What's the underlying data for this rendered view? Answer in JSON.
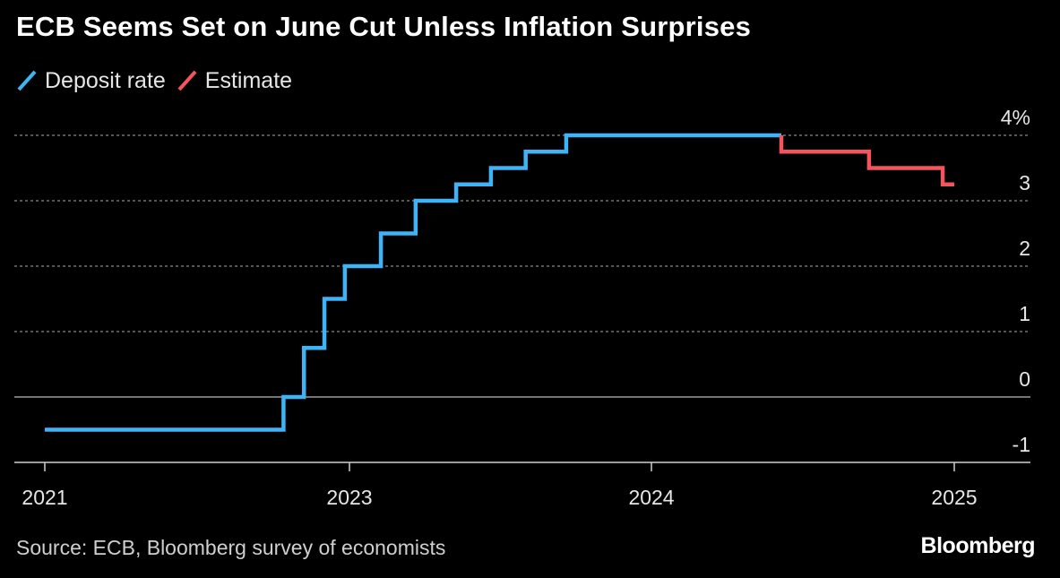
{
  "title": "ECB Seems Set on June Cut Unless Inflation Surprises",
  "legend": [
    {
      "label": "Deposit rate",
      "color": "#3eb3f5"
    },
    {
      "label": "Estimate",
      "color": "#f4545c"
    }
  ],
  "footer": {
    "source": "Source: ECB, Bloomberg survey of economists",
    "brand": "Bloomberg"
  },
  "colors": {
    "background": "#000000",
    "deposit": "#3eb3f5",
    "estimate": "#f4545c",
    "grid": "#8a8a8a",
    "zero_line": "#9a9a9a",
    "axis_text": "#e6e6e6"
  },
  "chart_data": {
    "type": "line",
    "step": true,
    "title": "ECB Seems Set on June Cut Unless Inflation Surprises",
    "xlabel": "",
    "ylabel": "",
    "y_unit": "%",
    "ylim": [
      -1,
      4
    ],
    "y_ticks": [
      4,
      3,
      2,
      1,
      0,
      -1
    ],
    "y_tick_labels": [
      "4%",
      "3",
      "2",
      "1",
      "0",
      "-1"
    ],
    "x_ticks": [
      "2021-01-01",
      "2023-01-01",
      "2024-01-01",
      "2025-01-01"
    ],
    "x_tick_labels": [
      "2021",
      "2023",
      "2024",
      "2025"
    ],
    "xlim": [
      "2021-01-01",
      "2025-05-01"
    ],
    "grid": true,
    "legend_position": "top-left",
    "series": [
      {
        "name": "Deposit rate",
        "color": "#3eb3f5",
        "points": [
          {
            "x": "2021-01-01",
            "y": -0.5
          },
          {
            "x": "2022-07-27",
            "y": 0
          },
          {
            "x": "2022-09-14",
            "y": 0.75
          },
          {
            "x": "2022-11-02",
            "y": 1.5
          },
          {
            "x": "2022-12-21",
            "y": 2.0
          },
          {
            "x": "2023-02-08",
            "y": 2.5
          },
          {
            "x": "2023-03-22",
            "y": 3.0
          },
          {
            "x": "2023-05-10",
            "y": 3.25
          },
          {
            "x": "2023-06-21",
            "y": 3.5
          },
          {
            "x": "2023-08-02",
            "y": 3.75
          },
          {
            "x": "2023-09-20",
            "y": 4.0
          },
          {
            "x": "2024-06-06",
            "y": 4.0
          }
        ]
      },
      {
        "name": "Estimate",
        "color": "#f4545c",
        "points": [
          {
            "x": "2024-06-06",
            "y": 4.0
          },
          {
            "x": "2024-06-06",
            "y": 3.75
          },
          {
            "x": "2024-09-20",
            "y": 3.5
          },
          {
            "x": "2024-12-18",
            "y": 3.25
          },
          {
            "x": "2025-01-01",
            "y": 3.25
          }
        ]
      }
    ]
  }
}
